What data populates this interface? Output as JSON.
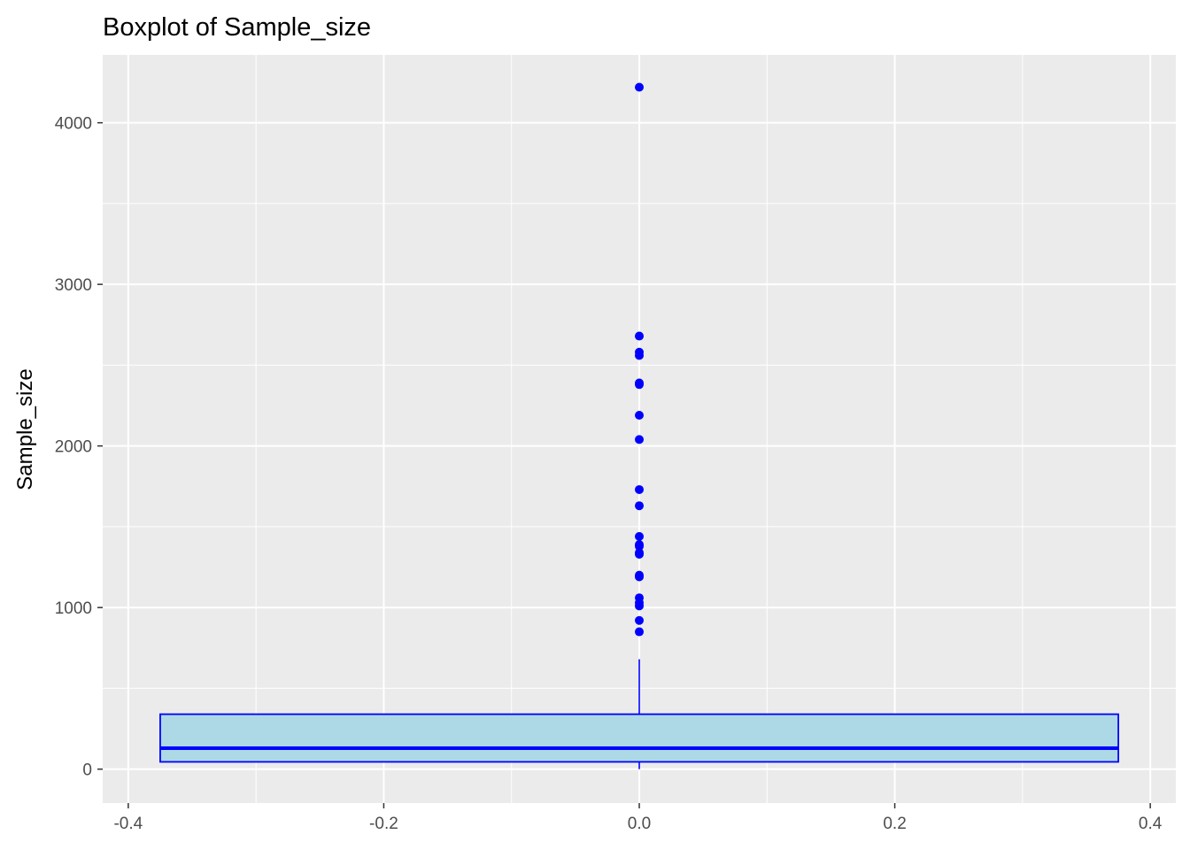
{
  "chart_data": {
    "type": "boxplot",
    "title": "Boxplot of Sample_size",
    "xlabel": "",
    "ylabel": "Sample_size",
    "xlim": [
      -0.42,
      0.42
    ],
    "ylim": [
      -210,
      4420
    ],
    "x_ticks": [
      -0.4,
      -0.2,
      0.0,
      0.2,
      0.4
    ],
    "x_tick_labels": [
      "-0.4",
      "-0.2",
      "0.0",
      "0.2",
      "0.4"
    ],
    "y_ticks": [
      0,
      1000,
      2000,
      3000,
      4000
    ],
    "y_tick_labels": [
      "0",
      "1000",
      "2000",
      "3000",
      "4000"
    ],
    "grid": true,
    "box": {
      "x_center": 0.0,
      "x_min": -0.375,
      "x_max": 0.375,
      "q1": 45,
      "median": 130,
      "q3": 340,
      "whisker_low": 0,
      "whisker_high": 680
    },
    "outliers": [
      850,
      920,
      1010,
      1030,
      1060,
      1190,
      1200,
      1330,
      1340,
      1380,
      1390,
      1440,
      1630,
      1730,
      2040,
      2190,
      2380,
      2390,
      2560,
      2580,
      2680,
      4220
    ],
    "colors": {
      "panel_bg": "#ebebeb",
      "grid_major": "#ffffff",
      "box_fill": "#add8e6",
      "box_line": "#0000ff",
      "outlier": "#0000ff",
      "tick_text": "#4d4d4d"
    }
  }
}
